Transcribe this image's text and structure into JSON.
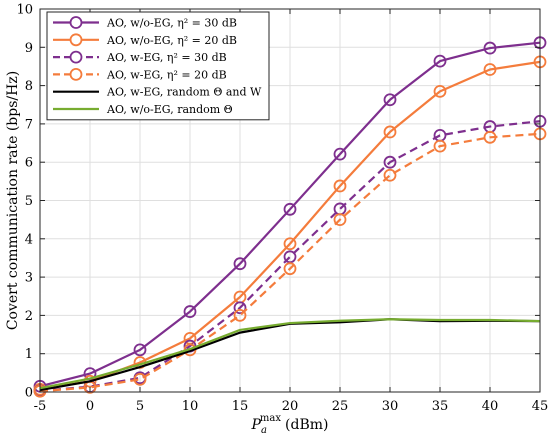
{
  "chart_data": {
    "type": "line",
    "xlabel_base": "P",
    "xlabel_sub": "a",
    "xlabel_sup": "max",
    "xlabel_unit": "(dBm)",
    "ylabel": "Covert communication rate (bps/Hz)",
    "x": [
      -5,
      0,
      5,
      10,
      15,
      20,
      25,
      30,
      35,
      40,
      45
    ],
    "xlim": [
      -5,
      45
    ],
    "ylim": [
      0,
      10
    ],
    "xticks": [
      "-5",
      "0",
      "5",
      "10",
      "15",
      "20",
      "25",
      "30",
      "35",
      "40",
      "45"
    ],
    "yticks": [
      "0",
      "1",
      "2",
      "3",
      "4",
      "5",
      "6",
      "7",
      "8",
      "9",
      "10"
    ],
    "grid": true,
    "legend_position": "top-left",
    "series": [
      {
        "name": "AO, w/o-EG, η² = 30 dB",
        "color": "#7e2f8e",
        "dash": "solid",
        "marker": "circle",
        "values": [
          0.15,
          0.48,
          1.1,
          2.1,
          3.35,
          4.77,
          6.21,
          7.63,
          8.64,
          8.98,
          9.12
        ]
      },
      {
        "name": "AO, w/o-EG, η² = 20 dB",
        "color": "#f47c3c",
        "dash": "solid",
        "marker": "circle",
        "values": [
          0.07,
          0.28,
          0.77,
          1.4,
          2.48,
          3.87,
          5.38,
          6.79,
          7.85,
          8.42,
          8.62
        ]
      },
      {
        "name": "AO, w-EG, η² = 30 dB",
        "color": "#7e2f8e",
        "dash": "dashed",
        "marker": "circle",
        "values": [
          0.03,
          0.14,
          0.37,
          1.2,
          2.2,
          3.53,
          4.78,
          6.0,
          6.7,
          6.93,
          7.07
        ]
      },
      {
        "name": "AO, w-EG, η² = 20 dB",
        "color": "#f47c3c",
        "dash": "dashed",
        "marker": "circle",
        "values": [
          0.02,
          0.12,
          0.33,
          1.1,
          2.0,
          3.22,
          4.5,
          5.66,
          6.42,
          6.65,
          6.74
        ]
      },
      {
        "name": "AO, w-EG, random Θ and W",
        "color": "#000000",
        "dash": "solid",
        "marker": "none",
        "values": [
          0.05,
          0.28,
          0.65,
          1.07,
          1.55,
          1.78,
          1.82,
          1.9,
          1.85,
          1.86,
          1.85
        ]
      },
      {
        "name": "AO, w/o-EG, random Θ",
        "color": "#77ac30",
        "dash": "solid",
        "marker": "none",
        "values": [
          0.1,
          0.35,
          0.72,
          1.12,
          1.62,
          1.8,
          1.86,
          1.9,
          1.88,
          1.88,
          1.85
        ]
      }
    ]
  }
}
